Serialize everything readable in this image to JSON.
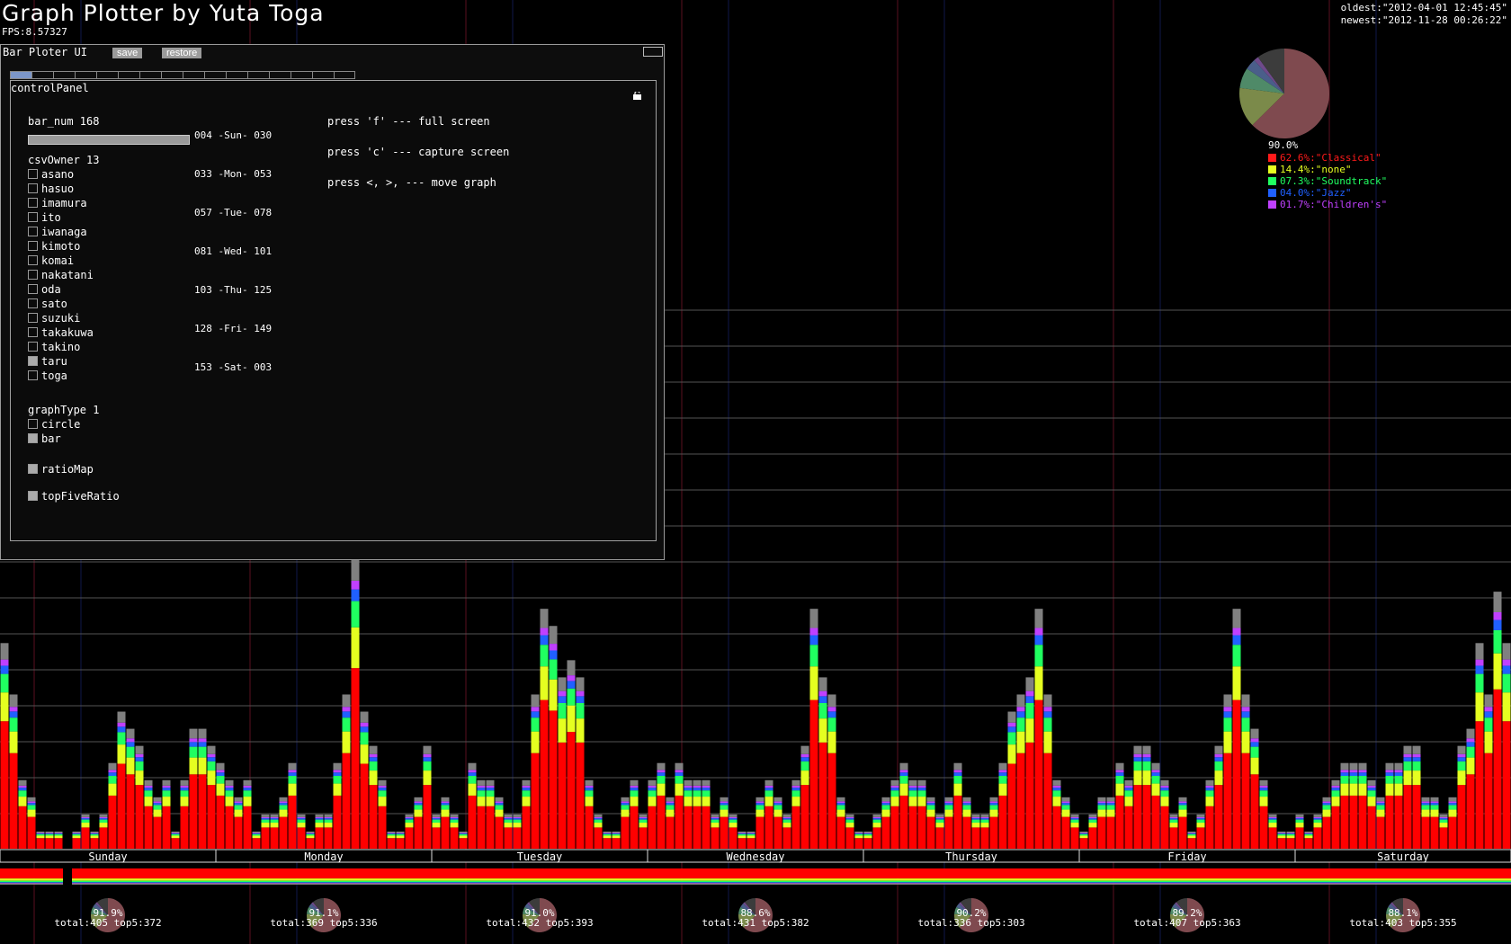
{
  "app": {
    "title": "Graph Plotter by Yuta Toga",
    "fps": "FPS:8.57327",
    "oldest": "oldest:\"2012-04-01 12:45:45\"",
    "newest": "newest:\"2012-11-28 00:26:22\""
  },
  "window": {
    "title": "Bar Ploter UI",
    "save_label": "save",
    "restore_label": "restore",
    "tab_count": 16,
    "active_tab": 0
  },
  "panel": {
    "title": "controlPanel",
    "bar_num_label": "bar_num 168",
    "bar_num_fill": 1.0,
    "csv_owner_label": "csvOwner 13",
    "owners": [
      {
        "name": "asano",
        "checked": false
      },
      {
        "name": "hasuo",
        "checked": false
      },
      {
        "name": "imamura",
        "checked": false
      },
      {
        "name": "ito",
        "checked": false
      },
      {
        "name": "iwanaga",
        "checked": false
      },
      {
        "name": "kimoto",
        "checked": false
      },
      {
        "name": "komai",
        "checked": false
      },
      {
        "name": "nakatani",
        "checked": false
      },
      {
        "name": "oda",
        "checked": false
      },
      {
        "name": "sato",
        "checked": false
      },
      {
        "name": "suzuki",
        "checked": false
      },
      {
        "name": "takakuwa",
        "checked": false
      },
      {
        "name": "takino",
        "checked": false
      },
      {
        "name": "taru",
        "checked": true
      },
      {
        "name": "toga",
        "checked": false
      }
    ],
    "day_ranges": [
      "004 -Sun- 030",
      "033 -Mon- 053",
      "057 -Tue- 078",
      "081 -Wed- 101",
      "103 -Thu- 125",
      "128 -Fri- 149",
      "153 -Sat- 003"
    ],
    "graph_type_label": "graphType 1",
    "graph_types": [
      {
        "name": "circle",
        "checked": false
      },
      {
        "name": "bar",
        "checked": true
      }
    ],
    "ratio_map_label": "ratioMap",
    "ratio_map_checked": true,
    "top_five_label": "topFiveRatio",
    "top_five_checked": true,
    "help": [
      "press 'f' --- full screen",
      "press 'c' --- capture screen",
      "press <, >, --- move graph"
    ]
  },
  "pie": {
    "total_label": "90.0%",
    "slices": [
      {
        "label": "62.6%:\"Classical\"",
        "value": 62.6,
        "color": "#7f4a4f",
        "legend_color": "#ff1a1a"
      },
      {
        "label": "14.4%:\"none\"",
        "value": 14.4,
        "color": "#7b8a4a",
        "legend_color": "#e5ff20"
      },
      {
        "label": "07.3%:\"Soundtrack\"",
        "value": 7.3,
        "color": "#4f8a68",
        "legend_color": "#20ff60"
      },
      {
        "label": "04.0%:\"Jazz\"",
        "value": 4.0,
        "color": "#4a5e8a",
        "legend_color": "#2060ff"
      },
      {
        "label": "01.7%:\"Children's\"",
        "value": 1.7,
        "color": "#6e4a8a",
        "legend_color": "#c040ff"
      }
    ],
    "rest_color": "#3c3c3c"
  },
  "days": [
    {
      "name": "Sunday",
      "pct": "91.9%",
      "totals": "total:405 top5:372"
    },
    {
      "name": "Monday",
      "pct": "91.1%",
      "totals": "total:369 top5:336"
    },
    {
      "name": "Tuesday",
      "pct": "91.0%",
      "totals": "total:432 top5:393"
    },
    {
      "name": "Wednesday",
      "pct": "88.6%",
      "totals": "total:431 top5:382"
    },
    {
      "name": "Thursday",
      "pct": "90.2%",
      "totals": "total:336 top5:303"
    },
    {
      "name": "Friday",
      "pct": "89.2%",
      "totals": "total:407 top5:363"
    },
    {
      "name": "Saturday",
      "pct": "88.1%",
      "totals": "total:403 top5:355"
    }
  ],
  "chart_data": {
    "type": "bar",
    "stacked": true,
    "bars_per_day": 24,
    "series_colors": [
      "#ff0000",
      "#e5ff20",
      "#20ff60",
      "#2060ff",
      "#c040ff",
      "#808080"
    ],
    "totals": [
      12,
      9,
      4,
      3,
      1,
      1,
      1,
      0,
      1,
      2,
      1,
      2,
      5,
      8,
      7,
      6,
      4,
      3,
      4,
      1,
      4,
      7,
      7,
      6,
      5,
      4,
      3,
      4,
      1,
      2,
      2,
      3,
      5,
      2,
      1,
      2,
      2,
      5,
      9,
      17,
      8,
      6,
      4,
      1,
      1,
      2,
      3,
      6,
      2,
      3,
      2,
      1,
      5,
      4,
      4,
      3,
      2,
      2,
      4,
      9,
      14,
      13,
      10,
      11,
      10,
      4,
      2,
      1,
      1,
      3,
      4,
      2,
      4,
      5,
      3,
      5,
      4,
      4,
      4,
      2,
      3,
      2,
      1,
      1,
      3,
      4,
      3,
      2,
      4,
      6,
      14,
      10,
      9,
      3,
      2,
      1,
      1,
      2,
      3,
      4,
      5,
      4,
      4,
      3,
      2,
      3,
      5,
      3,
      2,
      2,
      3,
      5,
      8,
      9,
      10,
      14,
      9,
      4,
      3,
      2,
      1,
      2,
      3,
      3,
      5,
      4,
      6,
      6,
      5,
      4,
      2,
      3,
      1,
      2,
      4,
      6,
      9,
      14,
      9,
      7,
      4,
      2,
      1,
      1,
      2,
      1,
      2,
      3,
      4,
      5,
      5,
      5,
      4,
      3,
      5,
      5,
      6,
      6,
      3,
      3,
      2,
      3,
      6,
      7,
      12,
      9,
      15,
      12
    ],
    "ylim": [
      0,
      17
    ]
  }
}
